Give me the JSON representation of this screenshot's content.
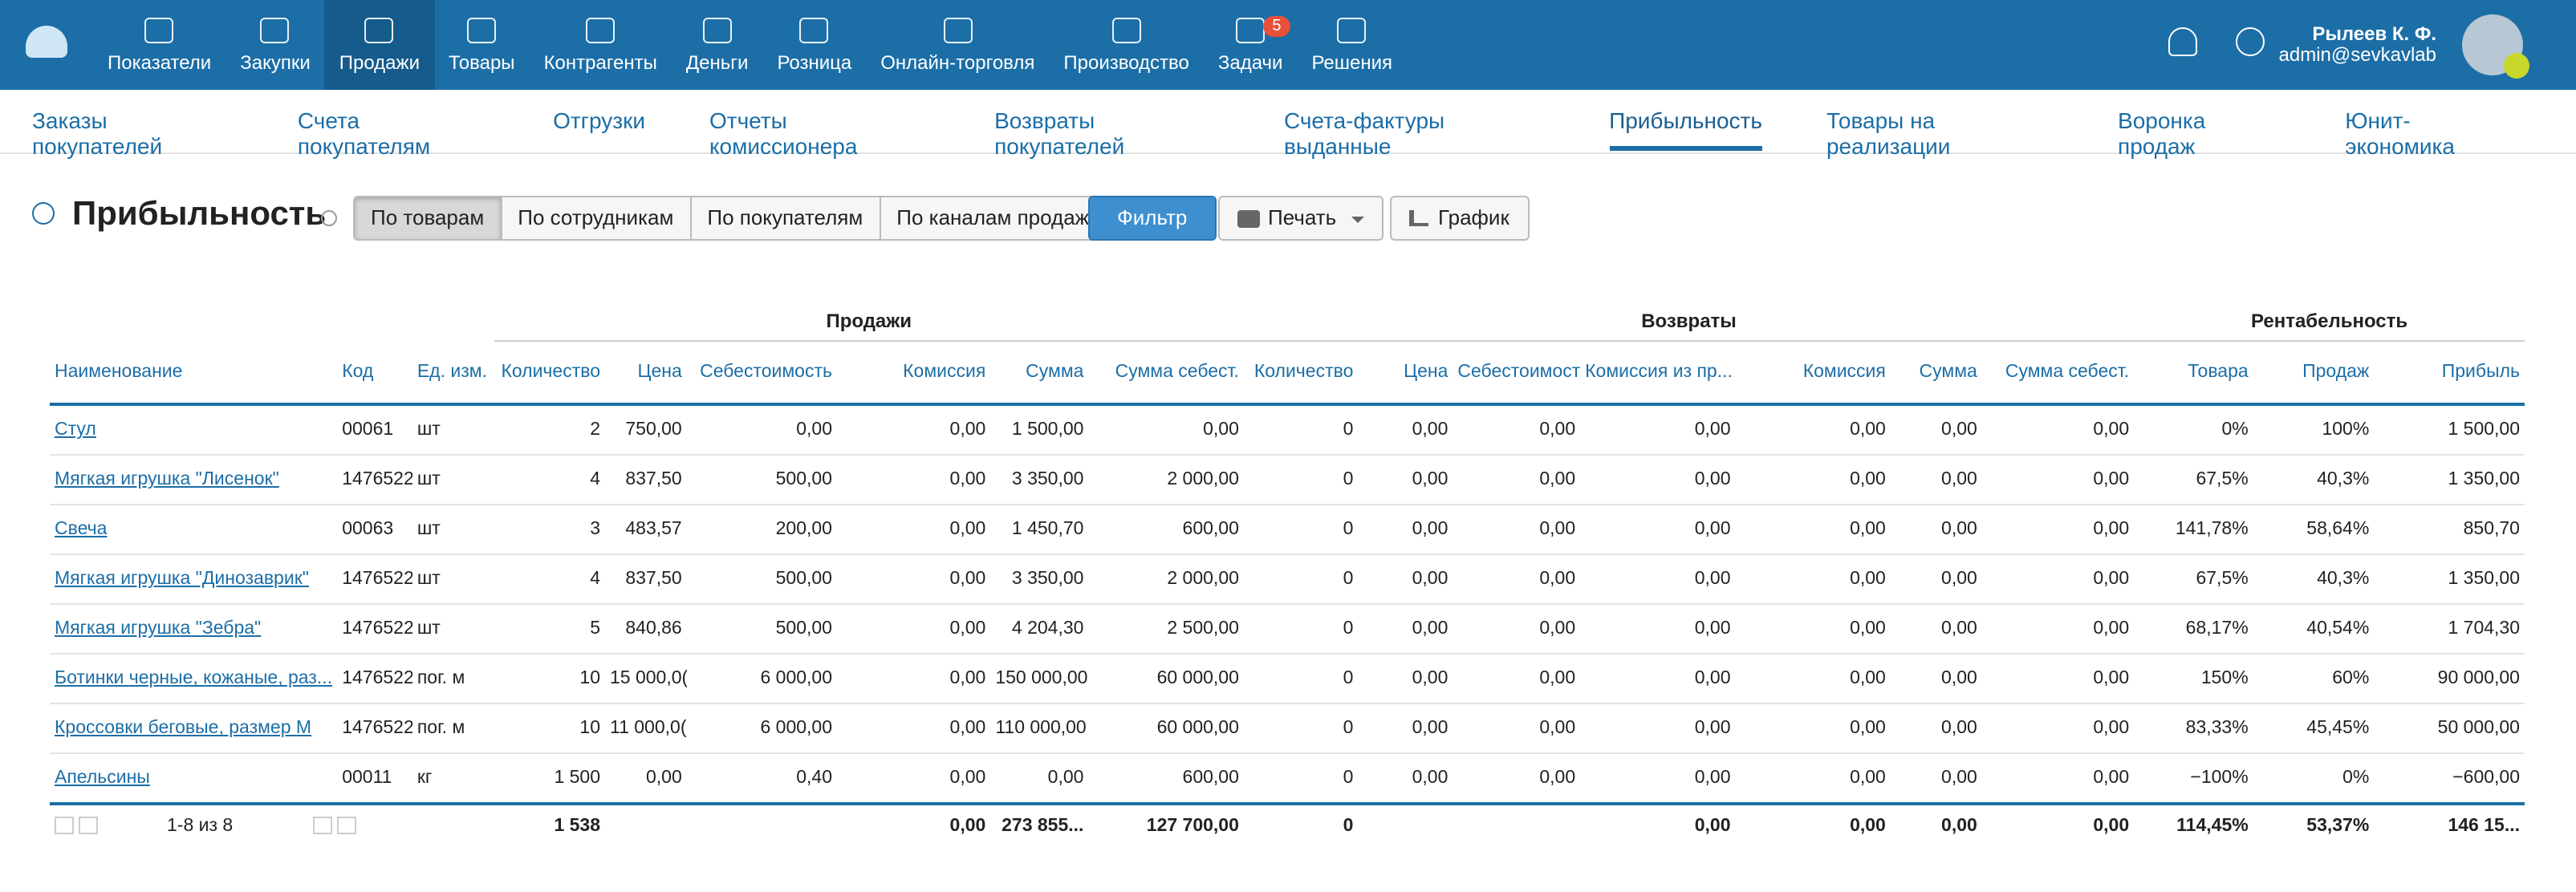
{
  "topnav": {
    "items": [
      {
        "label": "Показатели"
      },
      {
        "label": "Закупки"
      },
      {
        "label": "Продажи",
        "active": true
      },
      {
        "label": "Товары"
      },
      {
        "label": "Контрагенты"
      },
      {
        "label": "Деньги"
      },
      {
        "label": "Розница"
      },
      {
        "label": "Онлайн-торговля"
      },
      {
        "label": "Производство"
      },
      {
        "label": "Задачи",
        "badge": 5
      },
      {
        "label": "Решения"
      }
    ]
  },
  "user": {
    "name": "Рылеев К. Ф.",
    "email": "admin@sevkavlab"
  },
  "subnav": {
    "items": [
      {
        "label": "Заказы покупателей"
      },
      {
        "label": "Счета покупателям"
      },
      {
        "label": "Отгрузки"
      },
      {
        "label": "Отчеты комиссионера"
      },
      {
        "label": "Возвраты покупателей"
      },
      {
        "label": "Счета-фактуры выданные"
      },
      {
        "label": "Прибыльность",
        "active": true
      },
      {
        "label": "Товары на реализации"
      },
      {
        "label": "Воронка продаж"
      },
      {
        "label": "Юнит-экономика"
      }
    ]
  },
  "page": {
    "title": "Прибыльность",
    "tabs": [
      {
        "label": "По товарам",
        "active": true
      },
      {
        "label": "По сотрудникам"
      },
      {
        "label": "По покупателям"
      },
      {
        "label": "По каналам продаж"
      }
    ],
    "filter": "Фильтр",
    "print": "Печать",
    "chart": "График"
  },
  "table": {
    "groups": [
      "Продажи",
      "Возвраты",
      "Рентабельность"
    ],
    "columns": [
      "Наименование",
      "Код",
      "Ед. изм.",
      "Количество",
      "Цена",
      "Себестоимость",
      "Комиссия",
      "Сумма",
      "Сумма себест.",
      "Количество",
      "Цена",
      "Себестоимость",
      "Комиссия из пр...",
      "Комиссия",
      "Сумма",
      "Сумма себест.",
      "Товара",
      "Продаж",
      "Прибыль"
    ],
    "rows": [
      [
        "Стул",
        "00061",
        "шт",
        "2",
        "750,00",
        "0,00",
        "0,00",
        "1 500,00",
        "0,00",
        "0",
        "0,00",
        "0,00",
        "0,00",
        "0,00",
        "0,00",
        "0,00",
        "0%",
        "100%",
        "1 500,00"
      ],
      [
        "Мягкая игрушка \"Лисенок\"",
        "1476522",
        "шт",
        "4",
        "837,50",
        "500,00",
        "0,00",
        "3 350,00",
        "2 000,00",
        "0",
        "0,00",
        "0,00",
        "0,00",
        "0,00",
        "0,00",
        "0,00",
        "67,5%",
        "40,3%",
        "1 350,00"
      ],
      [
        "Свеча",
        "00063",
        "шт",
        "3",
        "483,57",
        "200,00",
        "0,00",
        "1 450,70",
        "600,00",
        "0",
        "0,00",
        "0,00",
        "0,00",
        "0,00",
        "0,00",
        "0,00",
        "141,78%",
        "58,64%",
        "850,70"
      ],
      [
        "Мягкая игрушка \"Динозаврик\"",
        "1476522",
        "шт",
        "4",
        "837,50",
        "500,00",
        "0,00",
        "3 350,00",
        "2 000,00",
        "0",
        "0,00",
        "0,00",
        "0,00",
        "0,00",
        "0,00",
        "0,00",
        "67,5%",
        "40,3%",
        "1 350,00"
      ],
      [
        "Мягкая игрушка \"Зебра\"",
        "1476522",
        "шт",
        "5",
        "840,86",
        "500,00",
        "0,00",
        "4 204,30",
        "2 500,00",
        "0",
        "0,00",
        "0,00",
        "0,00",
        "0,00",
        "0,00",
        "0,00",
        "68,17%",
        "40,54%",
        "1 704,30"
      ],
      [
        "Ботинки черные, кожаные, раз...",
        "1476522",
        "пог. м",
        "10",
        "15 000,0(",
        "6 000,00",
        "0,00",
        "150 000,00",
        "60 000,00",
        "0",
        "0,00",
        "0,00",
        "0,00",
        "0,00",
        "0,00",
        "0,00",
        "150%",
        "60%",
        "90 000,00"
      ],
      [
        "Кроссовки беговые, размер М",
        "1476522",
        "пог. м",
        "10",
        "11 000,0(",
        "6 000,00",
        "0,00",
        "110 000,00",
        "60 000,00",
        "0",
        "0,00",
        "0,00",
        "0,00",
        "0,00",
        "0,00",
        "0,00",
        "83,33%",
        "45,45%",
        "50 000,00"
      ],
      [
        "Апельсины",
        "00011",
        "кг",
        "1 500",
        "0,00",
        "0,40",
        "0,00",
        "0,00",
        "600,00",
        "0",
        "0,00",
        "0,00",
        "0,00",
        "0,00",
        "0,00",
        "0,00",
        "−100%",
        "0%",
        "−600,00"
      ]
    ],
    "pager": "1-8 из 8",
    "totals": [
      null,
      null,
      null,
      "1 538",
      null,
      null,
      "0,00",
      "273 855...",
      "127 700,00",
      "0",
      null,
      null,
      "0,00",
      "0,00",
      "0,00",
      "0,00",
      "114,45%",
      "53,37%",
      "146 15..."
    ]
  }
}
